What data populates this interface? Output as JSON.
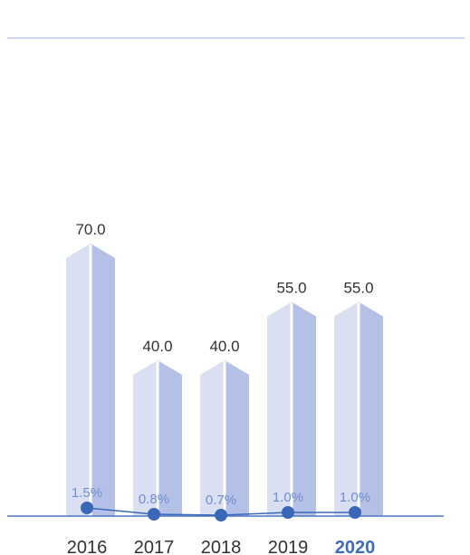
{
  "chart_data": {
    "type": "bar",
    "categories": [
      "2016",
      "2017",
      "2018",
      "2019",
      "2020"
    ],
    "highlight_category": "2020",
    "series": [
      {
        "type": "bar",
        "values": [
          70.0,
          40.0,
          40.0,
          55.0,
          55.0
        ],
        "labels": [
          "70.0",
          "40.0",
          "40.0",
          "55.0",
          "55.0"
        ]
      },
      {
        "type": "line",
        "values": [
          1.5,
          0.8,
          0.7,
          1.0,
          1.0
        ],
        "labels": [
          "1.5%",
          "0.8%",
          "0.7%",
          "1.0%",
          "1.0%"
        ]
      }
    ],
    "ylim": [
      0,
      100
    ],
    "grid": false,
    "colors": {
      "bar_light": "#dadff2",
      "bar_dark": "#b4c0e5",
      "bar_divider": "#ffffff",
      "line": "#3a68b7",
      "marker": "#3a68b7",
      "line_label": "#6f8fcf",
      "top_rule": "#9bb0dd",
      "axis": "#4a76c2"
    }
  }
}
